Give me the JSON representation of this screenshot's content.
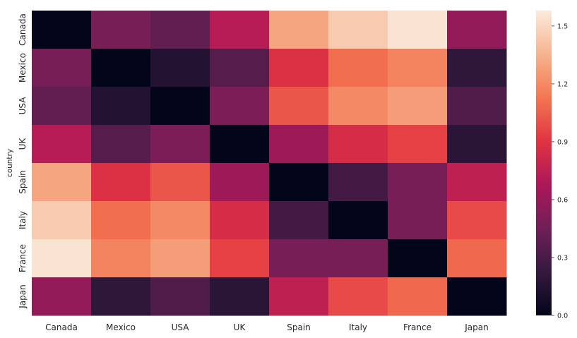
{
  "chart_data": {
    "type": "heatmap",
    "ylabel": "country",
    "xlabel": "",
    "title": "",
    "x_categories": [
      "Canada",
      "Mexico",
      "USA",
      "UK",
      "Spain",
      "Italy",
      "France",
      "Japan"
    ],
    "y_categories": [
      "Canada",
      "Mexico",
      "USA",
      "UK",
      "Spain",
      "Italy",
      "France",
      "Japan"
    ],
    "values": [
      [
        0.0,
        0.48,
        0.4,
        0.72,
        1.3,
        1.45,
        1.55,
        0.58
      ],
      [
        0.48,
        0.0,
        0.15,
        0.35,
        0.88,
        1.1,
        1.18,
        0.2
      ],
      [
        0.4,
        0.15,
        0.0,
        0.5,
        1.02,
        1.2,
        1.27,
        0.33
      ],
      [
        0.72,
        0.35,
        0.5,
        0.0,
        0.62,
        0.85,
        0.95,
        0.18
      ],
      [
        1.3,
        0.88,
        1.02,
        0.62,
        0.0,
        0.28,
        0.48,
        0.75
      ],
      [
        1.45,
        1.1,
        1.2,
        0.85,
        0.28,
        0.0,
        0.48,
        0.98
      ],
      [
        1.55,
        1.18,
        1.27,
        0.95,
        0.48,
        0.48,
        0.0,
        1.08
      ],
      [
        0.58,
        0.2,
        0.33,
        0.18,
        0.75,
        0.98,
        1.08,
        0.0
      ]
    ],
    "vmin": 0.0,
    "vmax": 1.58,
    "colormap": "rocket",
    "colorbar_ticks": [
      "0.0",
      "0.3",
      "0.6",
      "0.9",
      "1.2",
      "1.5"
    ]
  },
  "colors": {
    "rocket_stops": [
      "#03051a",
      "#35193e",
      "#701f57",
      "#ad1759",
      "#e13342",
      "#f37651",
      "#f6b48f",
      "#faebdd"
    ],
    "text": "#262626"
  }
}
